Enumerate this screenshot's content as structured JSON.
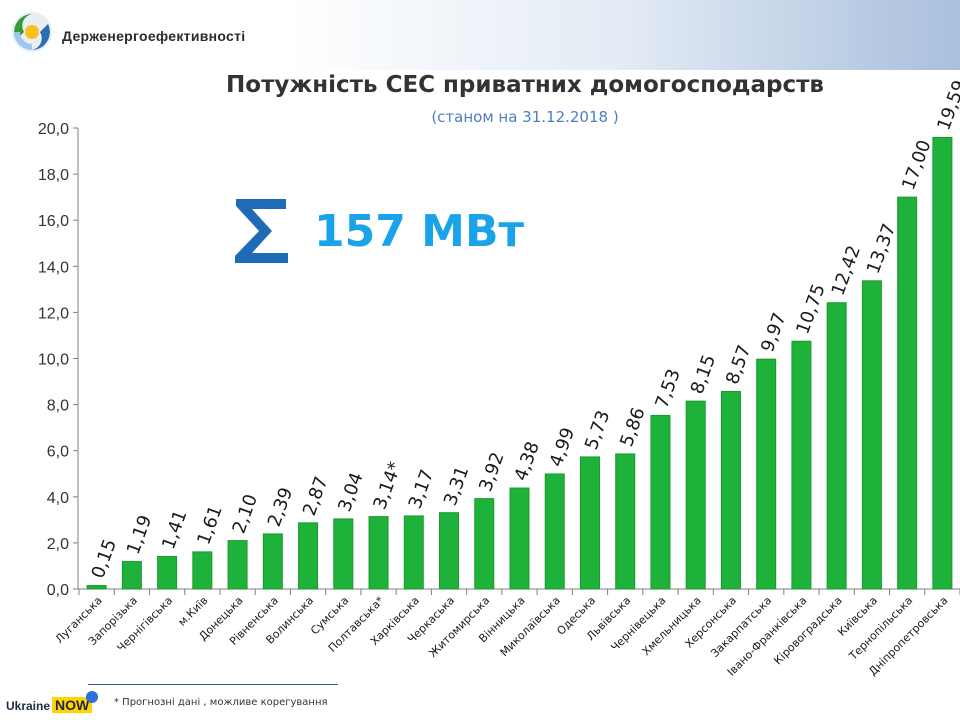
{
  "header": {
    "org_name": "Держенергоефективності"
  },
  "summary": {
    "sigma": "Σ",
    "total": "157 МВт"
  },
  "footer": {
    "footnote": "* Прогнозні дані , можливе корегування",
    "badge_part1": "Ukraine",
    "badge_part2": "NOW"
  },
  "colors": {
    "bar": "#1fb23a",
    "bar_edge": "#179a2f",
    "sigma": "#1f6bb5",
    "total": "#1aa3e8"
  },
  "chart_data": {
    "type": "bar",
    "title": "Потужність СЕС приватних домогосподарств",
    "subtitle": "(станом на 31.12.2018 )",
    "xlabel": "",
    "ylabel": "",
    "ylim": [
      0,
      20
    ],
    "yticks": [
      "0,0",
      "2,0",
      "4,0",
      "6,0",
      "8,0",
      "10,0",
      "12,0",
      "14,0",
      "16,0",
      "18,0",
      "20,0"
    ],
    "grid": false,
    "categories": [
      "Луганська",
      "Запорізька",
      "Чернігівська",
      "м.Київ",
      "Донецька",
      "Рівненська",
      "Волинська",
      "Сумська",
      "Полтавська*",
      "Харківська",
      "Черкаська",
      "Житомирська",
      "Вінницька",
      "Миколаївська",
      "Одеська",
      "Львівська",
      "Чернівецька",
      "Хмельницька",
      "Херсонська",
      "Закарпатська",
      "Івано-Франківська",
      "Кіровоградська",
      "Київська",
      "Тернопільська",
      "Дніпропетровська"
    ],
    "values": [
      0.15,
      1.19,
      1.41,
      1.61,
      2.1,
      2.39,
      2.87,
      3.04,
      3.14,
      3.17,
      3.31,
      3.92,
      4.38,
      4.99,
      5.73,
      5.86,
      7.53,
      8.15,
      8.57,
      9.97,
      10.75,
      12.42,
      13.37,
      17.0,
      19.59
    ],
    "labels": [
      "0,15",
      "1,19",
      "1,41",
      "1,61",
      "2,10",
      "2,39",
      "2,87",
      "3,04",
      "3,14*",
      "3,17",
      "3,31",
      "3,92",
      "4,38",
      "4,99",
      "5,73",
      "5,86",
      "7,53",
      "8,15",
      "8,57",
      "9,97",
      "10,75",
      "12,42",
      "13,37",
      "17,00",
      "19,59"
    ]
  }
}
